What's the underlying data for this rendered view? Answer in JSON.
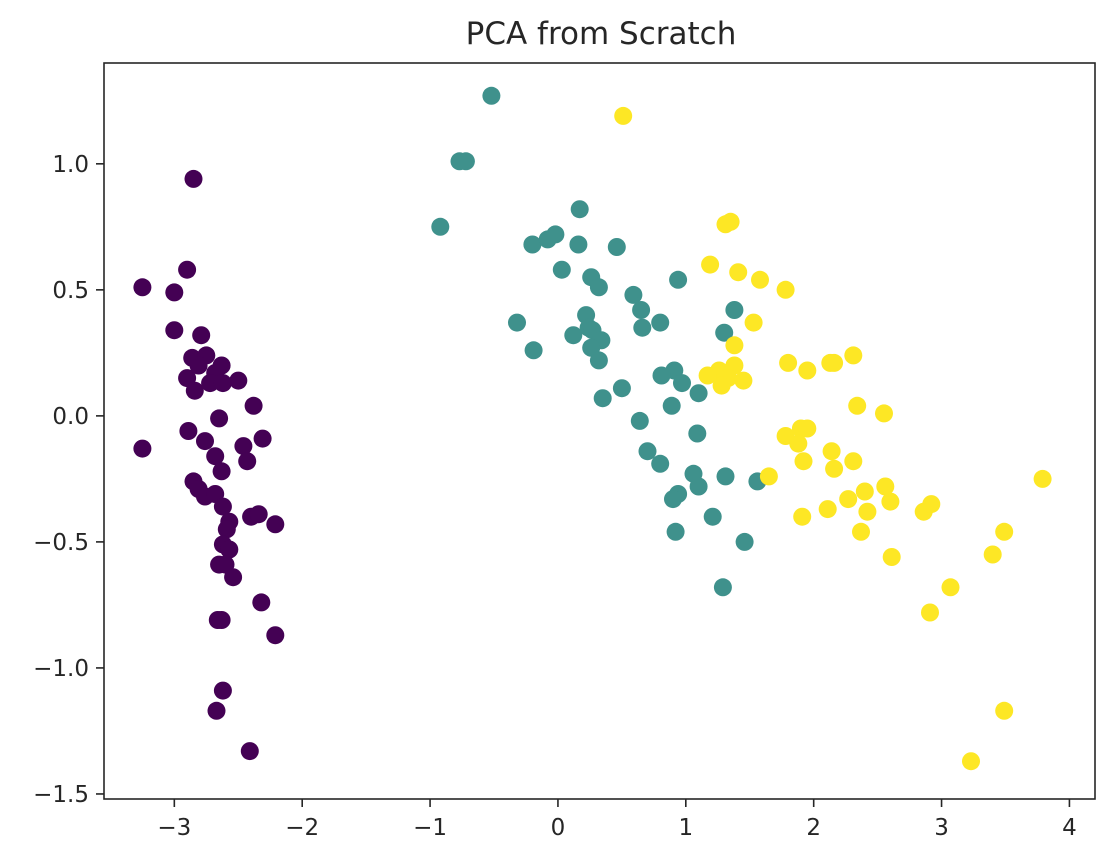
{
  "chart_data": {
    "type": "scatter",
    "title": "PCA from Scratch",
    "xlabel": "",
    "ylabel": "",
    "xlim": [
      -3.55,
      4.2
    ],
    "ylim": [
      -1.52,
      1.4
    ],
    "x_ticks": [
      -3,
      -2,
      -1,
      0,
      1,
      2,
      3,
      4
    ],
    "x_tick_labels": [
      "−3",
      "−2",
      "−1",
      "0",
      "1",
      "2",
      "3",
      "4"
    ],
    "y_ticks": [
      -1.5,
      -1.0,
      -0.5,
      0.0,
      0.5,
      1.0
    ],
    "y_tick_labels": [
      "−1.5",
      "−1.0",
      "−0.5",
      "0.0",
      "0.5",
      "1.0"
    ],
    "grid": false,
    "legend": "none",
    "colors": {
      "class_0": "#440154",
      "class_1": "#3f918c",
      "class_2": "#fde725",
      "axes": "#262626",
      "background": "#ffffff"
    },
    "series": [
      {
        "color_key": "class_0",
        "points": [
          [
            -2.85,
            0.94
          ],
          [
            -3.25,
            0.51
          ],
          [
            -2.9,
            0.58
          ],
          [
            -3.0,
            0.49
          ],
          [
            -3.0,
            0.34
          ],
          [
            -2.79,
            0.32
          ],
          [
            -2.86,
            0.23
          ],
          [
            -2.75,
            0.24
          ],
          [
            -2.63,
            0.2
          ],
          [
            -2.81,
            0.2
          ],
          [
            -2.68,
            0.17
          ],
          [
            -2.9,
            0.15
          ],
          [
            -2.5,
            0.14
          ],
          [
            -2.72,
            0.13
          ],
          [
            -2.84,
            0.1
          ],
          [
            -2.62,
            0.13
          ],
          [
            -2.38,
            0.04
          ],
          [
            -2.65,
            -0.01
          ],
          [
            -3.25,
            -0.13
          ],
          [
            -2.89,
            -0.06
          ],
          [
            -2.76,
            -0.1
          ],
          [
            -2.31,
            -0.09
          ],
          [
            -2.68,
            -0.16
          ],
          [
            -2.46,
            -0.12
          ],
          [
            -2.43,
            -0.18
          ],
          [
            -2.63,
            -0.22
          ],
          [
            -2.85,
            -0.26
          ],
          [
            -2.81,
            -0.29
          ],
          [
            -2.76,
            -0.32
          ],
          [
            -2.68,
            -0.31
          ],
          [
            -2.62,
            -0.36
          ],
          [
            -2.57,
            -0.42
          ],
          [
            -2.4,
            -0.4
          ],
          [
            -2.34,
            -0.39
          ],
          [
            -2.21,
            -0.43
          ],
          [
            -2.59,
            -0.45
          ],
          [
            -2.62,
            -0.51
          ],
          [
            -2.57,
            -0.53
          ],
          [
            -2.65,
            -0.59
          ],
          [
            -2.6,
            -0.59
          ],
          [
            -2.54,
            -0.64
          ],
          [
            -2.32,
            -0.74
          ],
          [
            -2.66,
            -0.81
          ],
          [
            -2.63,
            -0.81
          ],
          [
            -2.21,
            -0.87
          ],
          [
            -2.62,
            -1.09
          ],
          [
            -2.67,
            -1.17
          ],
          [
            -2.41,
            -1.33
          ]
        ]
      },
      {
        "color_key": "class_1",
        "points": [
          [
            -0.52,
            1.27
          ],
          [
            -0.77,
            1.01
          ],
          [
            -0.72,
            1.01
          ],
          [
            -0.92,
            0.75
          ],
          [
            0.17,
            0.82
          ],
          [
            -0.2,
            0.68
          ],
          [
            -0.08,
            0.7
          ],
          [
            -0.02,
            0.72
          ],
          [
            0.16,
            0.68
          ],
          [
            0.46,
            0.67
          ],
          [
            0.03,
            0.58
          ],
          [
            0.26,
            0.55
          ],
          [
            0.94,
            0.54
          ],
          [
            0.32,
            0.51
          ],
          [
            0.59,
            0.48
          ],
          [
            0.65,
            0.42
          ],
          [
            1.38,
            0.42
          ],
          [
            0.22,
            0.4
          ],
          [
            -0.32,
            0.37
          ],
          [
            0.8,
            0.37
          ],
          [
            0.24,
            0.35
          ],
          [
            0.27,
            0.34
          ],
          [
            0.66,
            0.35
          ],
          [
            1.3,
            0.33
          ],
          [
            0.12,
            0.32
          ],
          [
            0.34,
            0.3
          ],
          [
            0.26,
            0.27
          ],
          [
            -0.19,
            0.26
          ],
          [
            0.32,
            0.22
          ],
          [
            0.91,
            0.18
          ],
          [
            0.81,
            0.16
          ],
          [
            0.97,
            0.13
          ],
          [
            0.5,
            0.11
          ],
          [
            1.1,
            0.09
          ],
          [
            0.35,
            0.07
          ],
          [
            0.89,
            0.04
          ],
          [
            0.64,
            -0.02
          ],
          [
            1.09,
            -0.07
          ],
          [
            0.7,
            -0.14
          ],
          [
            0.8,
            -0.19
          ],
          [
            1.06,
            -0.23
          ],
          [
            1.31,
            -0.24
          ],
          [
            1.1,
            -0.28
          ],
          [
            1.56,
            -0.26
          ],
          [
            0.94,
            -0.31
          ],
          [
            0.9,
            -0.33
          ],
          [
            1.21,
            -0.4
          ],
          [
            0.92,
            -0.46
          ],
          [
            1.46,
            -0.5
          ],
          [
            1.29,
            -0.68
          ]
        ]
      },
      {
        "color_key": "class_2",
        "points": [
          [
            0.51,
            1.19
          ],
          [
            1.35,
            0.77
          ],
          [
            1.31,
            0.76
          ],
          [
            1.19,
            0.6
          ],
          [
            1.41,
            0.57
          ],
          [
            1.58,
            0.54
          ],
          [
            1.78,
            0.5
          ],
          [
            1.53,
            0.37
          ],
          [
            1.38,
            0.28
          ],
          [
            1.8,
            0.21
          ],
          [
            2.31,
            0.24
          ],
          [
            2.16,
            0.21
          ],
          [
            2.13,
            0.21
          ],
          [
            1.95,
            0.18
          ],
          [
            1.38,
            0.2
          ],
          [
            1.26,
            0.18
          ],
          [
            1.17,
            0.16
          ],
          [
            1.33,
            0.15
          ],
          [
            1.45,
            0.14
          ],
          [
            1.28,
            0.12
          ],
          [
            2.34,
            0.04
          ],
          [
            2.55,
            0.01
          ],
          [
            1.9,
            -0.05
          ],
          [
            1.95,
            -0.05
          ],
          [
            1.78,
            -0.08
          ],
          [
            1.88,
            -0.11
          ],
          [
            2.14,
            -0.14
          ],
          [
            1.92,
            -0.18
          ],
          [
            2.31,
            -0.18
          ],
          [
            2.16,
            -0.21
          ],
          [
            1.65,
            -0.24
          ],
          [
            2.56,
            -0.28
          ],
          [
            2.4,
            -0.3
          ],
          [
            2.27,
            -0.33
          ],
          [
            2.6,
            -0.34
          ],
          [
            2.42,
            -0.38
          ],
          [
            2.11,
            -0.37
          ],
          [
            1.91,
            -0.4
          ],
          [
            2.86,
            -0.38
          ],
          [
            2.92,
            -0.35
          ],
          [
            2.37,
            -0.46
          ],
          [
            3.49,
            -0.46
          ],
          [
            3.79,
            -0.25
          ],
          [
            3.4,
            -0.55
          ],
          [
            2.61,
            -0.56
          ],
          [
            3.07,
            -0.68
          ],
          [
            2.91,
            -0.78
          ],
          [
            3.49,
            -1.17
          ],
          [
            3.23,
            -1.37
          ]
        ]
      }
    ]
  }
}
